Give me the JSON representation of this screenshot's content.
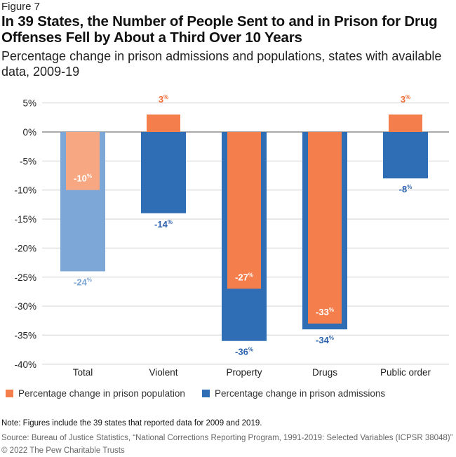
{
  "figure_label": "Figure 7",
  "chart_data": {
    "type": "bar",
    "title": "In 39 States, the Number of People Sent to and in Prison for Drug Offenses Fell by About a Third Over 10 Years",
    "subtitle": "Percentage change in prison admissions and populations, states with available data, 2009-19",
    "categories": [
      "Total",
      "Violent",
      "Property",
      "Drugs",
      "Public order"
    ],
    "series": [
      {
        "name": "Percentage change in prison population",
        "values": [
          -10,
          3,
          -27,
          -33,
          3
        ],
        "color": "#f47f4c",
        "total_color": "#f7a882",
        "label_color": "#f26b36"
      },
      {
        "name": "Percentage change in prison admissions",
        "values": [
          -24,
          -14,
          -36,
          -34,
          -8
        ],
        "color": "#2f6db5",
        "total_color": "#7da7d6",
        "label_color": "#2b62ad"
      }
    ],
    "data_labels": {
      "population": [
        "-10%",
        "3%",
        "-27%",
        "-33%",
        "3%"
      ],
      "admissions": [
        "-24%",
        "-14%",
        "-36%",
        "-34%",
        "-8%"
      ]
    },
    "y_ticks": [
      "5%",
      "0%",
      "-5%",
      "-10%",
      "-15%",
      "-20%",
      "-25%",
      "-30%",
      "-35%",
      "-40%"
    ],
    "ylim": [
      -40,
      5
    ],
    "grid": true,
    "legend": "bottom"
  },
  "note": "Note: Figures include the 39 states that reported data for 2009 and 2019.",
  "source": "Source: Bureau of Justice Statistics, “National Corrections Reporting Program, 1991-2019: Selected Variables (ICPSR 38048)”",
  "copyright": "© 2022 The Pew Charitable Trusts"
}
